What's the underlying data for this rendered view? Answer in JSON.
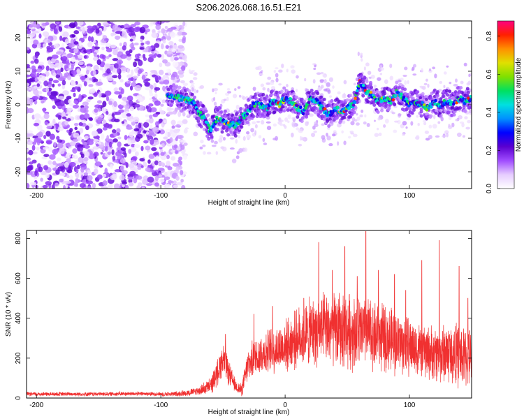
{
  "title": "S206.2026.068.16.51.E21",
  "chart_data": [
    {
      "type": "heatmap",
      "name": "spectrogram",
      "xlabel": "Height of straight line (km)",
      "ylabel": "Frequency (Hz)",
      "xlim": [
        -208,
        150
      ],
      "ylim": [
        -25,
        25
      ],
      "xticks": [
        -200,
        -100,
        0,
        100
      ],
      "yticks": [
        -20,
        -10,
        0,
        10,
        20
      ],
      "colorbar": {
        "label": "Normalized spectral amplitude",
        "range": [
          0,
          0.88
        ],
        "ticks": [
          "0.0",
          "0.2",
          "0.4",
          "0.6",
          "0.8"
        ],
        "tick_values": [
          0,
          0.2,
          0.4,
          0.6,
          0.8
        ],
        "colors": [
          "#ffffff",
          "#e6ccff",
          "#a04cff",
          "#5a00d0",
          "#0000ff",
          "#0090ff",
          "#00e0e0",
          "#00e060",
          "#80e000",
          "#e0e000",
          "#ff9000",
          "#ff2000",
          "#ff0080"
        ]
      },
      "ridge_frequency_trace": {
        "x": [
          -95,
          -85,
          -75,
          -70,
          -65,
          -60,
          -55,
          -50,
          -45,
          -40,
          -35,
          -30,
          -25,
          -20,
          -15,
          -10,
          -5,
          0,
          5,
          10,
          15,
          20,
          25,
          30,
          35,
          40,
          45,
          50,
          55,
          60,
          65,
          70,
          75,
          80,
          85,
          90,
          95,
          100,
          105,
          110,
          115,
          120,
          125,
          130,
          135,
          140,
          145,
          150
        ],
        "y": [
          3,
          2,
          1,
          -2,
          -4,
          -8,
          -4,
          -5,
          -6,
          -6,
          -4,
          -2,
          0,
          0,
          -1,
          1,
          0,
          2,
          1,
          -1,
          -2,
          2,
          1,
          -1,
          -3,
          -1,
          -2,
          -1,
          0,
          7,
          4,
          3,
          1,
          2,
          1,
          4,
          2,
          0,
          1,
          0,
          -1,
          1,
          0,
          1,
          0,
          2,
          1,
          2
        ]
      }
    },
    {
      "type": "line",
      "name": "snr",
      "xlabel": "Height of straight line (km)",
      "ylabel": "SNR (10 * v/v)",
      "xlim": [
        -208,
        150
      ],
      "ylim": [
        0,
        840
      ],
      "xticks": [
        -200,
        -100,
        0,
        100
      ],
      "yticks": [
        0,
        200,
        400,
        600,
        800
      ],
      "color": "#f03030",
      "series": [
        {
          "name": "SNR",
          "envelope": {
            "x": [
              -208,
              -180,
              -150,
              -120,
              -100,
              -90,
              -80,
              -70,
              -60,
              -55,
              -50,
              -45,
              -40,
              -35,
              -30,
              -25,
              -20,
              -10,
              0,
              10,
              20,
              30,
              40,
              50,
              60,
              70,
              80,
              90,
              100,
              110,
              120,
              130,
              140,
              150
            ],
            "mean": [
              20,
              20,
              20,
              22,
              20,
              20,
              25,
              35,
              60,
              120,
              200,
              120,
              60,
              40,
              160,
              200,
              220,
              240,
              260,
              300,
              330,
              340,
              340,
              340,
              330,
              320,
              300,
              280,
              260,
              240,
              220,
              230,
              210,
              200
            ],
            "spread": [
              10,
              10,
              10,
              10,
              10,
              12,
              15,
              20,
              40,
              60,
              80,
              60,
              30,
              30,
              80,
              90,
              100,
              110,
              120,
              140,
              160,
              170,
              180,
              180,
              180,
              170,
              160,
              150,
              140,
              130,
              130,
              150,
              150,
              140
            ]
          },
          "peaks": [
            [
              -48,
              320
            ],
            [
              -25,
              420
            ],
            [
              -10,
              460
            ],
            [
              15,
              500
            ],
            [
              27,
              780
            ],
            [
              38,
              640
            ],
            [
              48,
              760
            ],
            [
              58,
              610
            ],
            [
              65,
              835
            ],
            [
              75,
              640
            ],
            [
              88,
              620
            ],
            [
              97,
              540
            ],
            [
              110,
              690
            ],
            [
              124,
              790
            ],
            [
              140,
              660
            ],
            [
              147,
              500
            ]
          ]
        }
      ]
    }
  ]
}
